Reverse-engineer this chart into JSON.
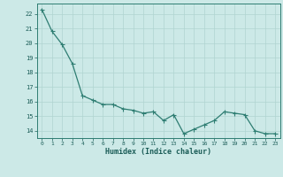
{
  "x": [
    0,
    1,
    2,
    3,
    4,
    5,
    6,
    7,
    8,
    9,
    10,
    11,
    12,
    13,
    14,
    15,
    16,
    17,
    18,
    19,
    20,
    21,
    22,
    23
  ],
  "y": [
    22.3,
    20.8,
    19.9,
    18.6,
    16.4,
    16.1,
    15.8,
    15.8,
    15.5,
    15.4,
    15.2,
    15.3,
    14.7,
    15.1,
    13.8,
    14.1,
    14.4,
    14.7,
    15.3,
    15.2,
    15.1,
    14.0,
    13.8,
    13.8
  ],
  "line_color": "#2e7d72",
  "marker": "D",
  "marker_size": 1.8,
  "line_width": 0.9,
  "bg_color": "#cce9e7",
  "grid_color": "#b0d4d1",
  "xlabel": "Humidex (Indice chaleur)",
  "xlabel_color": "#1a5c57",
  "tick_color": "#1a5c57",
  "ylim": [
    13.5,
    22.7
  ],
  "yticks": [
    14,
    15,
    16,
    17,
    18,
    19,
    20,
    21,
    22
  ],
  "xticks": [
    0,
    1,
    2,
    3,
    4,
    5,
    6,
    7,
    8,
    9,
    10,
    11,
    12,
    13,
    14,
    15,
    16,
    17,
    18,
    19,
    20,
    21,
    22,
    23
  ],
  "spine_color": "#2e7d72"
}
